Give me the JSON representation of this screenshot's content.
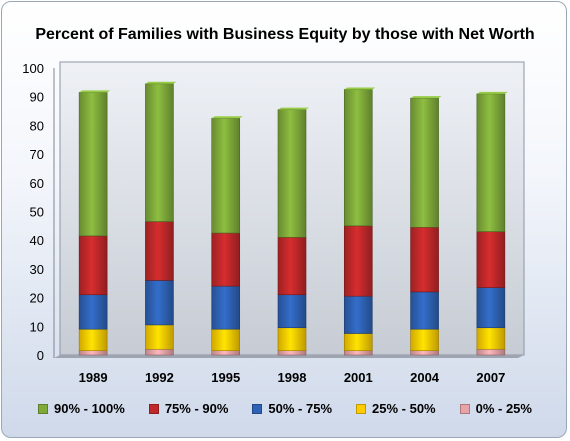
{
  "chart_data": {
    "type": "bar",
    "stacked": true,
    "title": "Percent of Families with Business Equity by those with Net Worth",
    "xlabel": "",
    "ylabel": "",
    "ylim": [
      0,
      100
    ],
    "yticks": [
      0,
      10,
      20,
      30,
      40,
      50,
      60,
      70,
      80,
      90,
      100
    ],
    "grid": false,
    "legend_position": "bottom",
    "categories": [
      "1989",
      "1992",
      "1995",
      "1998",
      "2001",
      "2004",
      "2007"
    ],
    "series": [
      {
        "name": "0% - 25%",
        "color": "#e6a3a8",
        "values": [
          1.5,
          2.0,
          1.5,
          1.5,
          1.5,
          1.5,
          2.0
        ]
      },
      {
        "name": "25% - 50%",
        "color": "#ffcc00",
        "values": [
          7.5,
          8.5,
          7.5,
          8.0,
          6.0,
          7.5,
          7.5
        ]
      },
      {
        "name": "50% - 75%",
        "color": "#2e62b5",
        "values": [
          12.0,
          15.5,
          15.0,
          11.5,
          13.0,
          13.0,
          14.0
        ]
      },
      {
        "name": "75% - 90%",
        "color": "#c0282a",
        "values": [
          20.5,
          20.5,
          18.5,
          20.0,
          24.5,
          22.5,
          19.5
        ]
      },
      {
        "name": "90% - 100%",
        "color": "#7faa3a",
        "values": [
          50.0,
          48.0,
          40.0,
          44.5,
          47.5,
          45.0,
          48.0
        ]
      }
    ],
    "legend_order": [
      "90% - 100%",
      "75% - 90%",
      "50% - 75%",
      "25% - 50%",
      "0% - 25%"
    ]
  }
}
